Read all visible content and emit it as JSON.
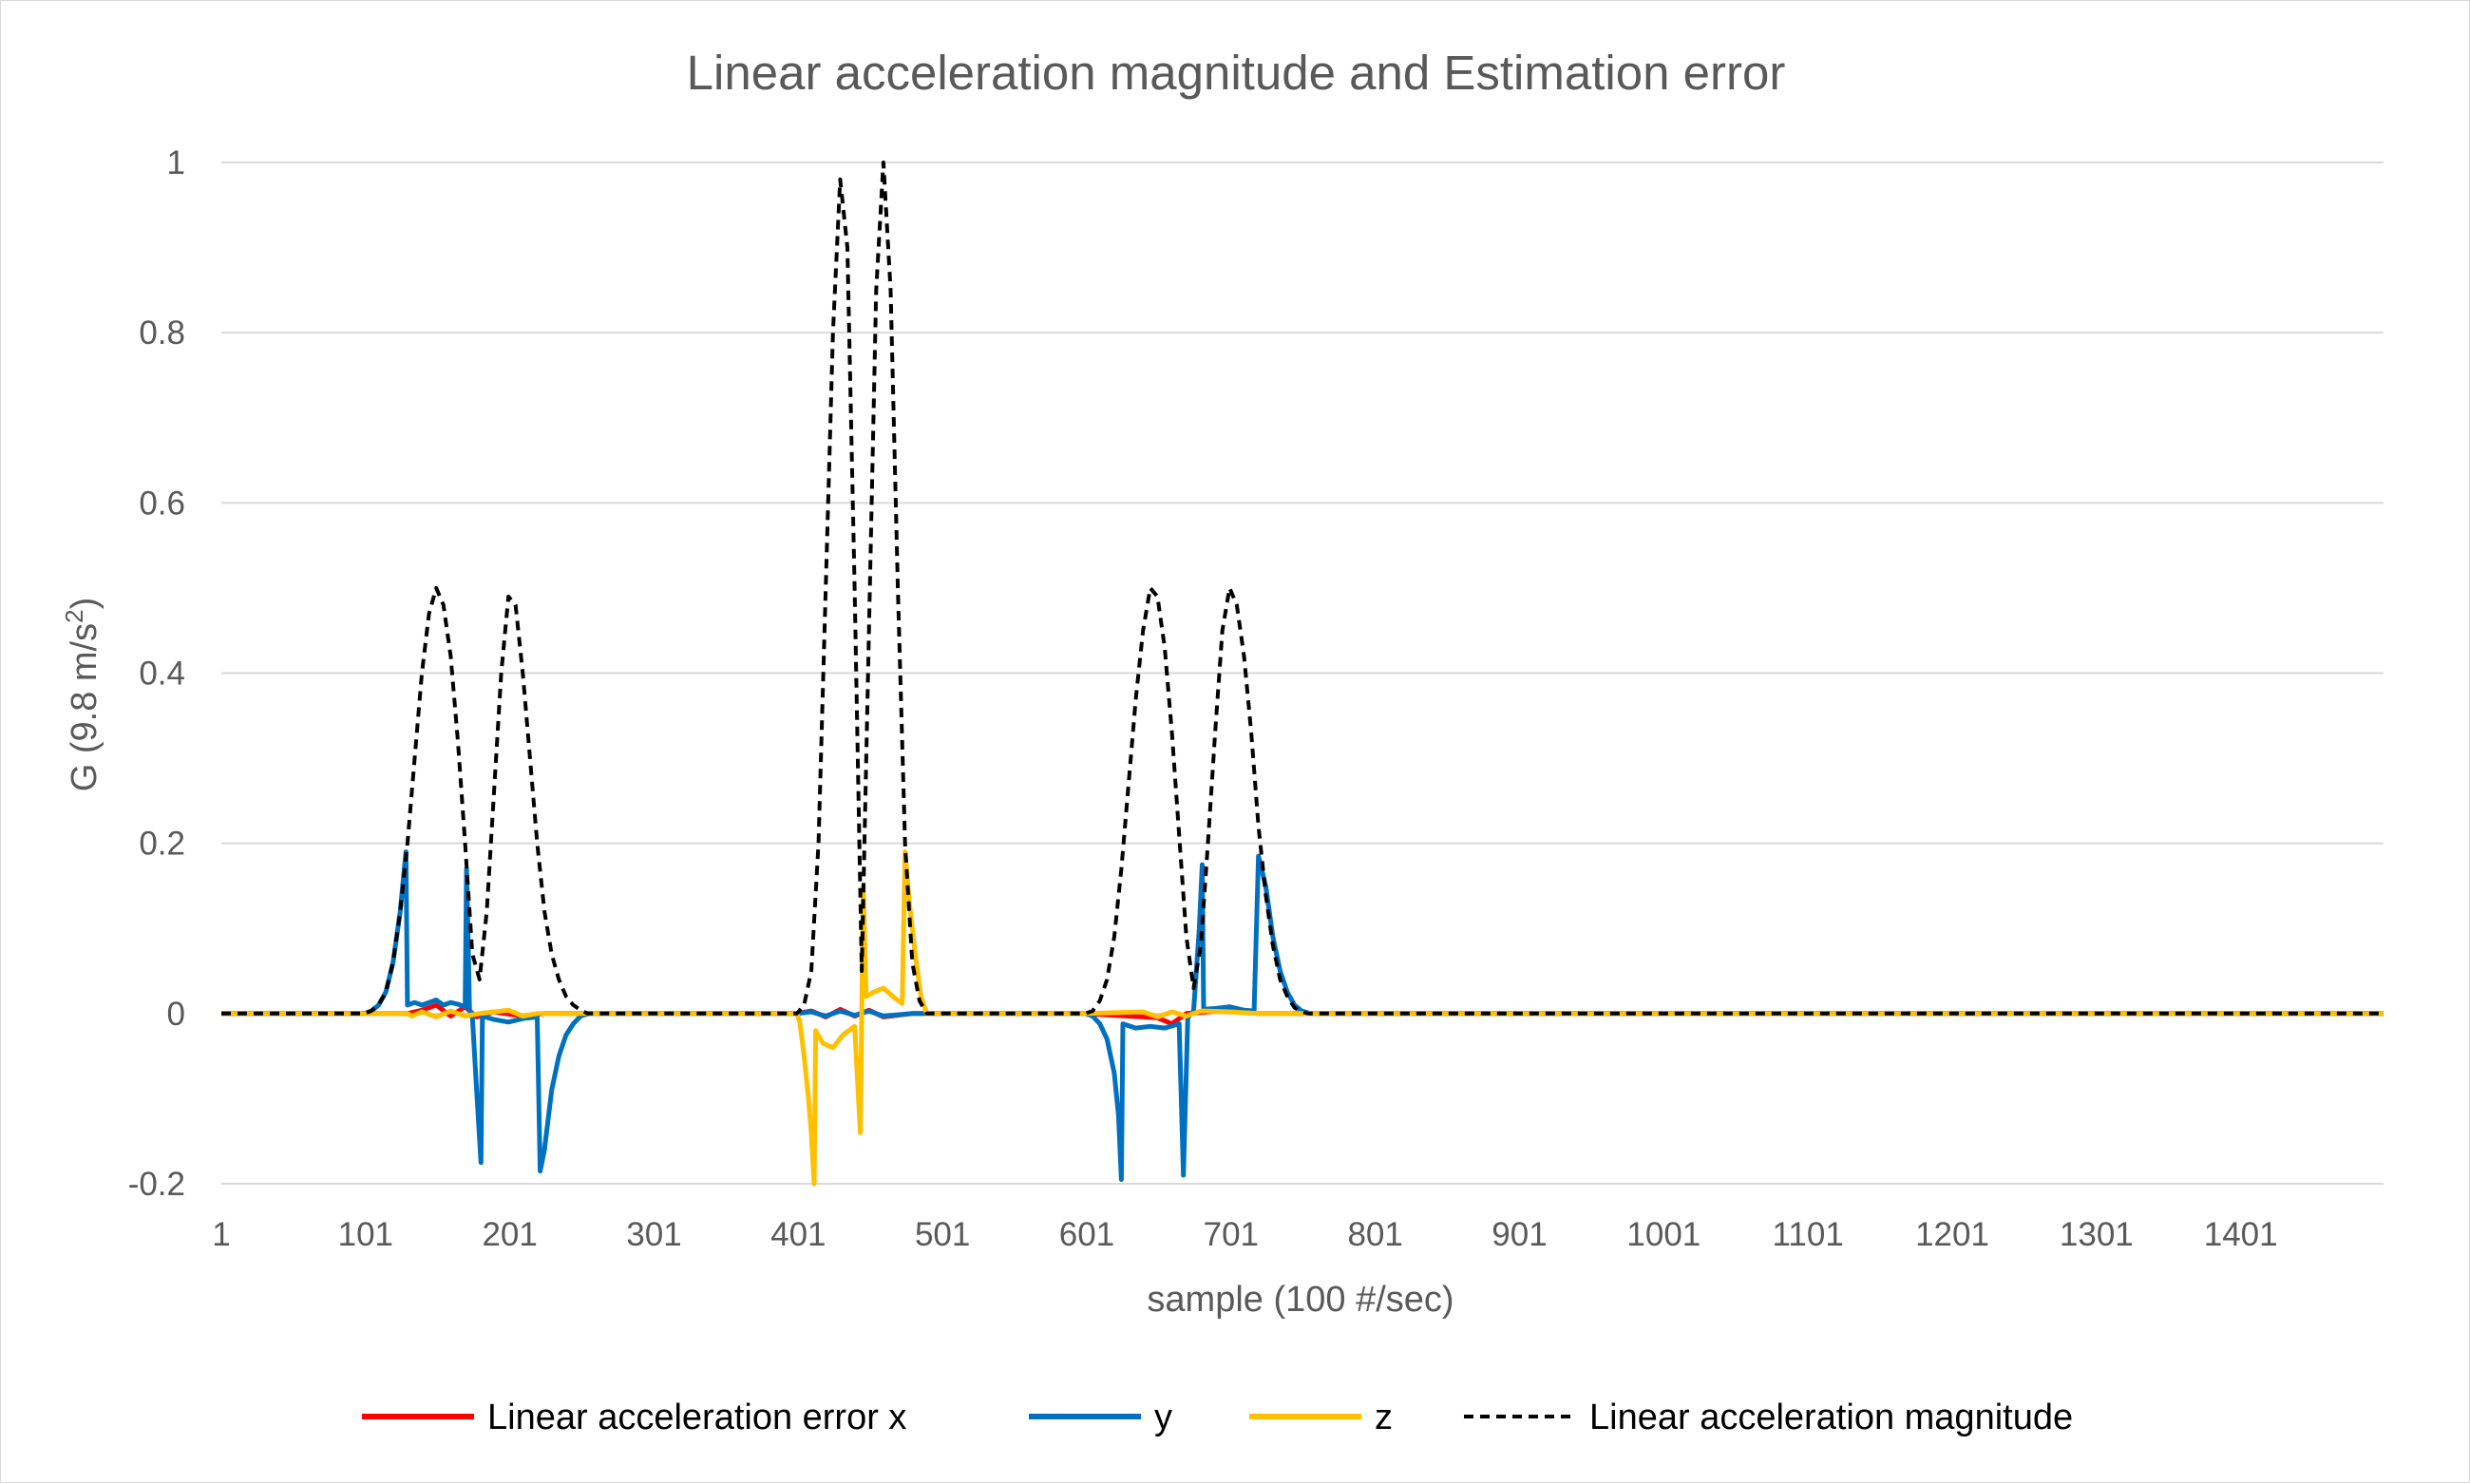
{
  "chart_data": {
    "type": "line",
    "title": "Linear acceleration magnitude and Estimation error",
    "xlabel": "sample (100 #/sec)",
    "ylabel": "G (9.8 m/s²)",
    "ylabel_main": "G (9.8 m/s",
    "ylabel_sup": "2",
    "ylabel_close": ")",
    "xlim": [
      1,
      1500
    ],
    "ylim": [
      -0.2,
      1
    ],
    "x_ticks": [
      "1",
      "101",
      "201",
      "301",
      "401",
      "501",
      "601",
      "701",
      "801",
      "901",
      "1001",
      "1101",
      "1201",
      "1301",
      "1401"
    ],
    "y_ticks": [
      "1",
      "0.8",
      "0.6",
      "0.4",
      "0.2",
      "0",
      "-0.2"
    ],
    "grid": "horizontal",
    "legend_position": "bottom",
    "series": [
      {
        "name": "Linear acceleration error x",
        "color": "#ff0000",
        "style": "solid",
        "points": [
          [
            1,
            0
          ],
          [
            130,
            0
          ],
          [
            140,
            0.004
          ],
          [
            150,
            0.01
          ],
          [
            160,
            -0.003
          ],
          [
            170,
            0.008
          ],
          [
            178,
            -0.004
          ],
          [
            190,
            0.002
          ],
          [
            210,
            -0.003
          ],
          [
            225,
            0
          ],
          [
            400,
            0
          ],
          [
            410,
            0.003
          ],
          [
            420,
            -0.004
          ],
          [
            430,
            0.005
          ],
          [
            440,
            -0.003
          ],
          [
            450,
            0.004
          ],
          [
            460,
            -0.004
          ],
          [
            480,
            0
          ],
          [
            600,
            0
          ],
          [
            650,
            -0.005
          ],
          [
            660,
            -0.012
          ],
          [
            670,
            0
          ],
          [
            700,
            0.004
          ],
          [
            720,
            0
          ],
          [
            1500,
            0
          ]
        ]
      },
      {
        "name": "y",
        "color": "#0070c0",
        "style": "solid",
        "points": [
          [
            1,
            0
          ],
          [
            100,
            0
          ],
          [
            105,
            0.003
          ],
          [
            110,
            0.01
          ],
          [
            115,
            0.025
          ],
          [
            120,
            0.06
          ],
          [
            125,
            0.12
          ],
          [
            129,
            0.19
          ],
          [
            130,
            0.01
          ],
          [
            135,
            0.013
          ],
          [
            140,
            0.01
          ],
          [
            145,
            0.013
          ],
          [
            150,
            0.016
          ],
          [
            155,
            0.01
          ],
          [
            160,
            0.013
          ],
          [
            165,
            0.011
          ],
          [
            170,
            0.008
          ],
          [
            171,
            0.17
          ],
          [
            172,
            0.1
          ],
          [
            173,
            0.005
          ],
          [
            175,
            -0.003
          ],
          [
            178,
            -0.09
          ],
          [
            181,
            -0.175
          ],
          [
            182,
            -0.003
          ],
          [
            190,
            -0.007
          ],
          [
            200,
            -0.01
          ],
          [
            210,
            -0.006
          ],
          [
            220,
            -0.004
          ],
          [
            222,
            -0.185
          ],
          [
            225,
            -0.16
          ],
          [
            230,
            -0.09
          ],
          [
            235,
            -0.05
          ],
          [
            240,
            -0.025
          ],
          [
            245,
            -0.012
          ],
          [
            250,
            -0.003
          ],
          [
            256,
            0
          ],
          [
            400,
            0
          ],
          [
            410,
            0.002
          ],
          [
            420,
            -0.003
          ],
          [
            430,
            0.003
          ],
          [
            440,
            -0.002
          ],
          [
            450,
            0.003
          ],
          [
            460,
            -0.003
          ],
          [
            480,
            0
          ],
          [
            600,
            0
          ],
          [
            605,
            -0.003
          ],
          [
            610,
            -0.012
          ],
          [
            615,
            -0.03
          ],
          [
            620,
            -0.07
          ],
          [
            623,
            -0.12
          ],
          [
            625,
            -0.195
          ],
          [
            626,
            -0.012
          ],
          [
            635,
            -0.017
          ],
          [
            645,
            -0.015
          ],
          [
            655,
            -0.017
          ],
          [
            665,
            -0.012
          ],
          [
            668,
            -0.19
          ],
          [
            671,
            -0.005
          ],
          [
            675,
            0.003
          ],
          [
            679,
            0.1
          ],
          [
            681,
            0.175
          ],
          [
            682,
            0.005
          ],
          [
            690,
            0.006
          ],
          [
            700,
            0.008
          ],
          [
            710,
            0.004
          ],
          [
            717,
            0.003
          ],
          [
            720,
            0.185
          ],
          [
            725,
            0.15
          ],
          [
            730,
            0.09
          ],
          [
            735,
            0.05
          ],
          [
            740,
            0.025
          ],
          [
            745,
            0.01
          ],
          [
            750,
            0.003
          ],
          [
            756,
            0
          ],
          [
            1500,
            0
          ]
        ]
      },
      {
        "name": "z",
        "color": "#ffc000",
        "style": "solid",
        "points": [
          [
            1,
            0
          ],
          [
            130,
            0
          ],
          [
            133,
            -0.003
          ],
          [
            140,
            0.002
          ],
          [
            150,
            -0.004
          ],
          [
            160,
            0.003
          ],
          [
            170,
            -0.003
          ],
          [
            180,
            0
          ],
          [
            200,
            0.004
          ],
          [
            210,
            -0.003
          ],
          [
            220,
            0
          ],
          [
            400,
            0
          ],
          [
            402,
            -0.01
          ],
          [
            405,
            -0.05
          ],
          [
            408,
            -0.1
          ],
          [
            410,
            -0.14
          ],
          [
            412,
            -0.2
          ],
          [
            413,
            -0.02
          ],
          [
            418,
            -0.035
          ],
          [
            425,
            -0.04
          ],
          [
            432,
            -0.025
          ],
          [
            440,
            -0.015
          ],
          [
            444,
            -0.14
          ],
          [
            446,
            0.15
          ],
          [
            448,
            0.02
          ],
          [
            453,
            0.025
          ],
          [
            460,
            0.03
          ],
          [
            468,
            0.018
          ],
          [
            473,
            0.012
          ],
          [
            475,
            0.19
          ],
          [
            478,
            0.13
          ],
          [
            482,
            0.07
          ],
          [
            486,
            0.02
          ],
          [
            490,
            0
          ],
          [
            600,
            0
          ],
          [
            640,
            0.002
          ],
          [
            650,
            -0.004
          ],
          [
            660,
            0.002
          ],
          [
            670,
            -0.003
          ],
          [
            680,
            0.003
          ],
          [
            700,
            0.002
          ],
          [
            720,
            0
          ],
          [
            1500,
            0
          ]
        ]
      },
      {
        "name": "Linear acceleration magnitude",
        "color": "#000000",
        "style": "dashed",
        "points": [
          [
            1,
            0
          ],
          [
            100,
            0
          ],
          [
            105,
            0.003
          ],
          [
            110,
            0.01
          ],
          [
            115,
            0.025
          ],
          [
            120,
            0.06
          ],
          [
            125,
            0.12
          ],
          [
            130,
            0.2
          ],
          [
            135,
            0.3
          ],
          [
            140,
            0.4
          ],
          [
            145,
            0.47
          ],
          [
            150,
            0.5
          ],
          [
            155,
            0.48
          ],
          [
            160,
            0.42
          ],
          [
            165,
            0.32
          ],
          [
            170,
            0.2
          ],
          [
            175,
            0.07
          ],
          [
            180,
            0.04
          ],
          [
            185,
            0.12
          ],
          [
            190,
            0.26
          ],
          [
            195,
            0.4
          ],
          [
            200,
            0.49
          ],
          [
            205,
            0.48
          ],
          [
            210,
            0.4
          ],
          [
            215,
            0.3
          ],
          [
            220,
            0.2
          ],
          [
            225,
            0.12
          ],
          [
            230,
            0.07
          ],
          [
            235,
            0.04
          ],
          [
            240,
            0.02
          ],
          [
            245,
            0.01
          ],
          [
            250,
            0.004
          ],
          [
            255,
            0
          ],
          [
            400,
            0
          ],
          [
            405,
            0.01
          ],
          [
            410,
            0.05
          ],
          [
            415,
            0.2
          ],
          [
            420,
            0.5
          ],
          [
            425,
            0.8
          ],
          [
            430,
            0.98
          ],
          [
            435,
            0.9
          ],
          [
            440,
            0.5
          ],
          [
            445,
            0.05
          ],
          [
            450,
            0.45
          ],
          [
            455,
            0.85
          ],
          [
            460,
            1.0
          ],
          [
            465,
            0.85
          ],
          [
            470,
            0.5
          ],
          [
            475,
            0.2
          ],
          [
            480,
            0.06
          ],
          [
            485,
            0.015
          ],
          [
            490,
            0
          ],
          [
            600,
            0
          ],
          [
            605,
            0.003
          ],
          [
            610,
            0.015
          ],
          [
            615,
            0.04
          ],
          [
            620,
            0.09
          ],
          [
            625,
            0.17
          ],
          [
            630,
            0.27
          ],
          [
            635,
            0.37
          ],
          [
            640,
            0.45
          ],
          [
            645,
            0.5
          ],
          [
            650,
            0.49
          ],
          [
            655,
            0.43
          ],
          [
            660,
            0.33
          ],
          [
            665,
            0.21
          ],
          [
            670,
            0.09
          ],
          [
            675,
            0.03
          ],
          [
            680,
            0.08
          ],
          [
            685,
            0.2
          ],
          [
            690,
            0.33
          ],
          [
            695,
            0.45
          ],
          [
            700,
            0.5
          ],
          [
            705,
            0.48
          ],
          [
            710,
            0.42
          ],
          [
            715,
            0.33
          ],
          [
            720,
            0.22
          ],
          [
            725,
            0.14
          ],
          [
            730,
            0.08
          ],
          [
            735,
            0.04
          ],
          [
            740,
            0.02
          ],
          [
            745,
            0.007
          ],
          [
            750,
            0.002
          ],
          [
            755,
            0
          ],
          [
            1500,
            0
          ]
        ]
      }
    ]
  }
}
